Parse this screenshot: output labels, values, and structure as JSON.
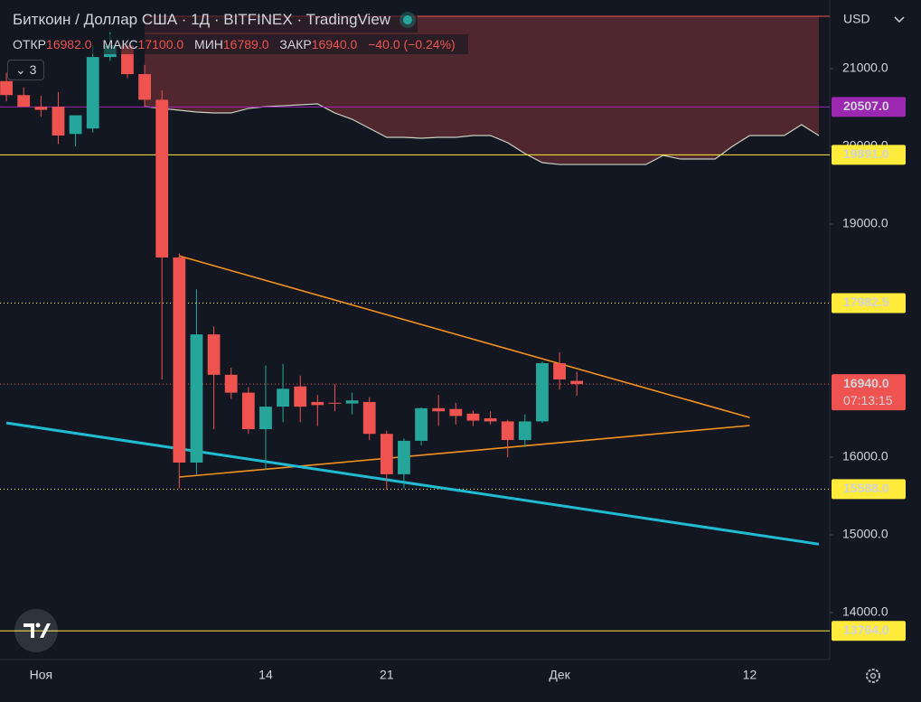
{
  "header": {
    "title": "Биткоин / Доллар США · 1Д · BITFINEX · TradingView",
    "ohlc": [
      {
        "label": "ОТКР",
        "value": "16982.0"
      },
      {
        "label": "МАКС",
        "value": "17100.0"
      },
      {
        "label": "МИН",
        "value": "16789.0"
      },
      {
        "label": "ЗАКР",
        "value": "16940.0"
      }
    ],
    "change": "−40.0 (−0.24%)",
    "indicators_count": "3"
  },
  "chart_data": {
    "type": "candlestick",
    "currency": "USD",
    "categories": [
      null,
      null,
      "Ноя",
      null,
      null,
      null,
      null,
      null,
      null,
      null,
      null,
      null,
      null,
      null,
      null,
      "14",
      null,
      null,
      null,
      null,
      null,
      null,
      "21",
      null,
      null,
      null,
      null,
      null,
      null,
      null,
      null,
      null,
      "Дек",
      null,
      null,
      null,
      null,
      null,
      null,
      null,
      null,
      null,
      null,
      "12",
      null,
      null,
      null,
      null
    ],
    "open": [
      20840,
      20660,
      20510,
      20510,
      20160,
      20230,
      21150,
      21300,
      20930,
      20600,
      18570,
      15930,
      17580,
      17060,
      16830,
      16360,
      16650,
      16910,
      16710,
      16700,
      16690,
      16710,
      16300,
      15780,
      16210,
      16630,
      16620,
      16560,
      16500,
      16460,
      16220,
      16460,
      17210,
      16982,
      null,
      null,
      null,
      null,
      null,
      null,
      null,
      null,
      null,
      null,
      null,
      null,
      null,
      null
    ],
    "high": [
      20950,
      20760,
      20650,
      20700,
      20400,
      21300,
      21480,
      21350,
      21050,
      20720,
      18620,
      18160,
      17680,
      17150,
      16900,
      17180,
      17200,
      17050,
      16800,
      16940,
      16830,
      16770,
      16340,
      16240,
      16640,
      16800,
      16700,
      16600,
      16590,
      16480,
      16550,
      17230,
      17350,
      17100,
      null,
      null,
      null,
      null,
      null,
      null,
      null,
      null,
      null,
      null,
      null,
      null,
      null,
      null
    ],
    "low": [
      20580,
      20530,
      20380,
      20030,
      20000,
      20180,
      21100,
      20880,
      20510,
      17000,
      15600,
      15780,
      16360,
      16750,
      16300,
      15840,
      16450,
      16450,
      16400,
      16590,
      16550,
      16220,
      15580,
      15600,
      16150,
      16400,
      16420,
      16400,
      16420,
      16000,
      16130,
      16440,
      16870,
      16789,
      null,
      null,
      null,
      null,
      null,
      null,
      null,
      null,
      null,
      null,
      null,
      null,
      null,
      null
    ],
    "close": [
      20660,
      20510,
      20470,
      20140,
      20400,
      21150,
      21300,
      20930,
      20600,
      18570,
      15930,
      17580,
      17060,
      16830,
      16360,
      16650,
      16880,
      16650,
      16670,
      16690,
      16730,
      16300,
      15780,
      16210,
      16630,
      16590,
      16530,
      16470,
      16460,
      16220,
      16460,
      17210,
      17000,
      16940,
      null,
      null,
      null,
      null,
      null,
      null,
      null,
      null,
      null,
      null,
      null,
      null,
      null,
      null
    ],
    "up_color": "#26a69a",
    "down_color": "#ef5350",
    "ylim": [
      13395,
      21884
    ],
    "yticks": [
      {
        "value": 21000,
        "label": "21000.0"
      },
      {
        "value": 20000,
        "label": "20000.0"
      },
      {
        "value": 19000,
        "label": "19000.0"
      },
      {
        "value": 16000,
        "label": "16000.0"
      },
      {
        "value": 15000,
        "label": "15000.0"
      },
      {
        "value": 14000,
        "label": "14000.0"
      }
    ],
    "band": {
      "color": "#ef5350",
      "line_color": "#c8d0c0",
      "top": 21674,
      "values": [
        null,
        null,
        null,
        null,
        null,
        null,
        null,
        null,
        20512,
        20488,
        20465,
        20442,
        20430,
        20430,
        20488,
        20512,
        20523,
        20535,
        20547,
        20430,
        20349,
        20233,
        20116,
        20116,
        20105,
        20116,
        20116,
        20140,
        20140,
        20047,
        19907,
        19791,
        19767,
        19767,
        19767,
        19767,
        19767,
        19767,
        19884,
        19837,
        19837,
        19837,
        20000,
        20140,
        20140,
        20140,
        20279,
        20140
      ]
    },
    "trendlines": [
      {
        "color": "#f7931a",
        "x": [
          10,
          43
        ],
        "values": [
          18590,
          16510
        ]
      },
      {
        "color": "#f7931a",
        "x": [
          10,
          43
        ],
        "values": [
          15744,
          16407
        ]
      },
      {
        "color": "#1fbcd2",
        "x": [
          0,
          47
        ],
        "values": [
          16440,
          14880
        ]
      }
    ],
    "price_lines": [
      {
        "value": 20507,
        "label": "20507.0",
        "color": "#9c27b0",
        "style": "solid"
      },
      {
        "value": 19891,
        "label": "19891.0",
        "color": "#ffeb3b",
        "style": "solid"
      },
      {
        "value": 17982.5,
        "label": "17982.5",
        "color": "#ffeb3b",
        "style": "dotted"
      },
      {
        "value": 16940,
        "label": "16940.0",
        "color": "#ef5350",
        "style": "dotted",
        "countdown": "07:13:15"
      },
      {
        "value": 15588,
        "label": "15588.0",
        "color": "#ffeb3b",
        "style": "dotted"
      },
      {
        "value": 13764,
        "label": "13764.0",
        "color": "#ffeb3b",
        "style": "solid"
      }
    ]
  }
}
